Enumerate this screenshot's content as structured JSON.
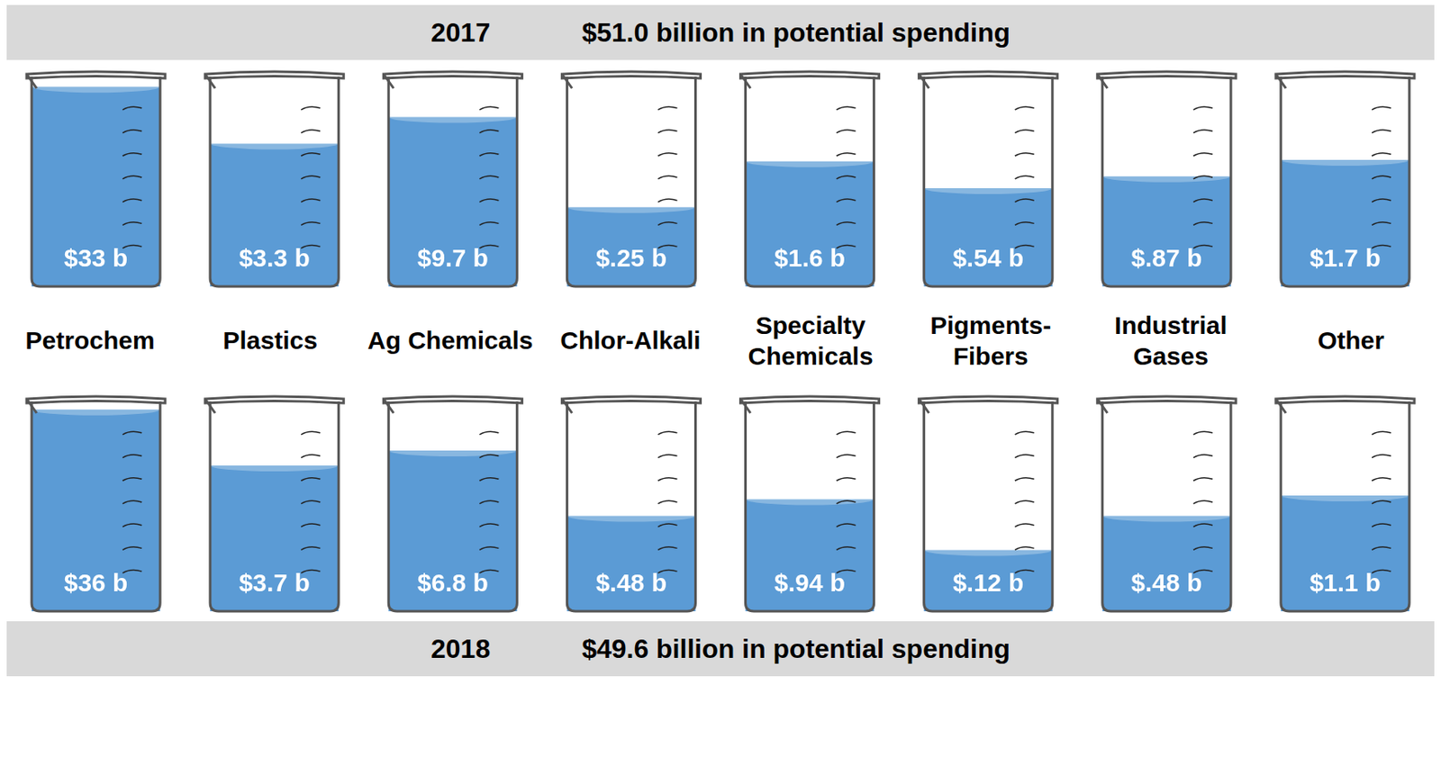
{
  "chart_data": [
    {
      "type": "bar",
      "title": "2017",
      "subtitle": "$51.0 billion in potential spending",
      "categories": [
        "Petrochem",
        "Plastics",
        "Ag Chemicals",
        "Chlor-Alkali",
        "Specialty Chemicals",
        "Pigments-Fibers",
        "Industrial Gases",
        "Other"
      ],
      "values": [
        33,
        3.3,
        9.7,
        0.25,
        1.6,
        0.54,
        0.87,
        1.7
      ],
      "value_labels": [
        "$33 b",
        "$3.3 b",
        "$9.7 b",
        "$.25 b",
        "$1.6 b",
        "$.54 b",
        "$.87 b",
        "$1.7 b"
      ],
      "color": "#5b9bd5",
      "log": "y",
      "ylim": [
        0.01,
        50
      ],
      "tick_labels": false,
      "data_labels": true,
      "grid": false
    },
    {
      "type": "bar",
      "title": "2018",
      "subtitle": "$49.6 billion in potential spending",
      "categories": [
        "Petrochem",
        "Plastics",
        "Ag Chemicals",
        "Chlor-Alkali",
        "Specialty Chemicals",
        "Pigments-Fibers",
        "Industrial Gases",
        "Other"
      ],
      "values": [
        36,
        3.7,
        6.8,
        0.48,
        0.94,
        0.12,
        0.48,
        1.1
      ],
      "value_labels": [
        "$36 b",
        "$3.7 b",
        "$6.8 b",
        "$.48 b",
        "$.94 b",
        "$.12 b",
        "$.48 b",
        "$1.1 b"
      ],
      "color": "#5b9bd5",
      "log": "y",
      "ylim": [
        0.01,
        50
      ],
      "tick_labels": false,
      "data_labels": true,
      "grid": false
    }
  ]
}
